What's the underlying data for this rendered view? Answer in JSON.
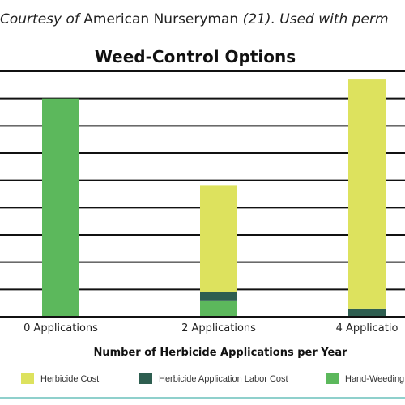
{
  "credit": {
    "part1": "Courtesy ",
    "part2": "of ",
    "part3": "American Nurseryman ",
    "part4": "(21). Used with perm"
  },
  "colors": {
    "herbicide_cost": "#dde25e",
    "labor_cost": "#2e5e50",
    "hand_weeding": "#5cb85c",
    "gridline": "#111111",
    "background": "#ffffff"
  },
  "chart_data": {
    "type": "bar",
    "stacked": true,
    "title": "Weed-Control Options",
    "xlabel": "Number of Herbicide Applications per Year",
    "ylabel": "",
    "categories": [
      "0 Applications",
      "2 Applications",
      "4 Applicatio"
    ],
    "ylim": [
      0,
      9
    ],
    "grid": true,
    "legend_position": "bottom",
    "series": [
      {
        "name": "Hand-Weeding C",
        "values": [
          8.0,
          0.6,
          0.0
        ],
        "color": "#5cb85c"
      },
      {
        "name": "Herbicide Application Labor Cost",
        "values": [
          0.0,
          0.3,
          0.3
        ],
        "color": "#2e5e50"
      },
      {
        "name": "Herbicide Cost",
        "values": [
          0.0,
          3.9,
          8.4
        ],
        "color": "#dde25e"
      }
    ],
    "legend_order": [
      "Herbicide Cost",
      "Herbicide Application Labor Cost",
      "Hand-Weeding C"
    ]
  }
}
